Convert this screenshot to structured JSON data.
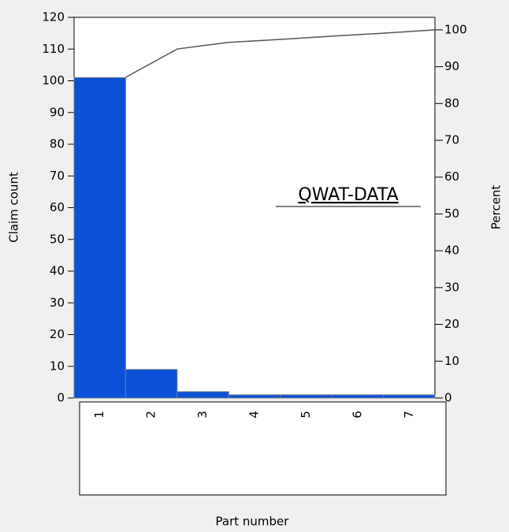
{
  "chart_data": {
    "type": "pareto",
    "categories": [
      "1",
      "2",
      "3",
      "4",
      "5",
      "6",
      "7"
    ],
    "values": [
      101,
      9,
      2,
      1,
      1,
      1,
      1
    ],
    "color": "#0b50d6",
    "line_values": [
      87.1,
      94.8,
      96.6,
      97.4,
      98.3,
      99.1,
      100
    ],
    "line_color": "#555555",
    "ylim": [
      0,
      120
    ],
    "yticks": [
      0,
      10,
      20,
      30,
      40,
      50,
      60,
      70,
      80,
      90,
      100,
      110,
      120
    ],
    "y2lim": [
      0,
      103.4
    ],
    "y2ticks": [
      0,
      10,
      20,
      30,
      40,
      50,
      60,
      70,
      80,
      90,
      100
    ],
    "xlabel": "Part number",
    "ylabel": "Claim count",
    "y2label": "Percent",
    "annotation": "QWAT-DATA"
  }
}
